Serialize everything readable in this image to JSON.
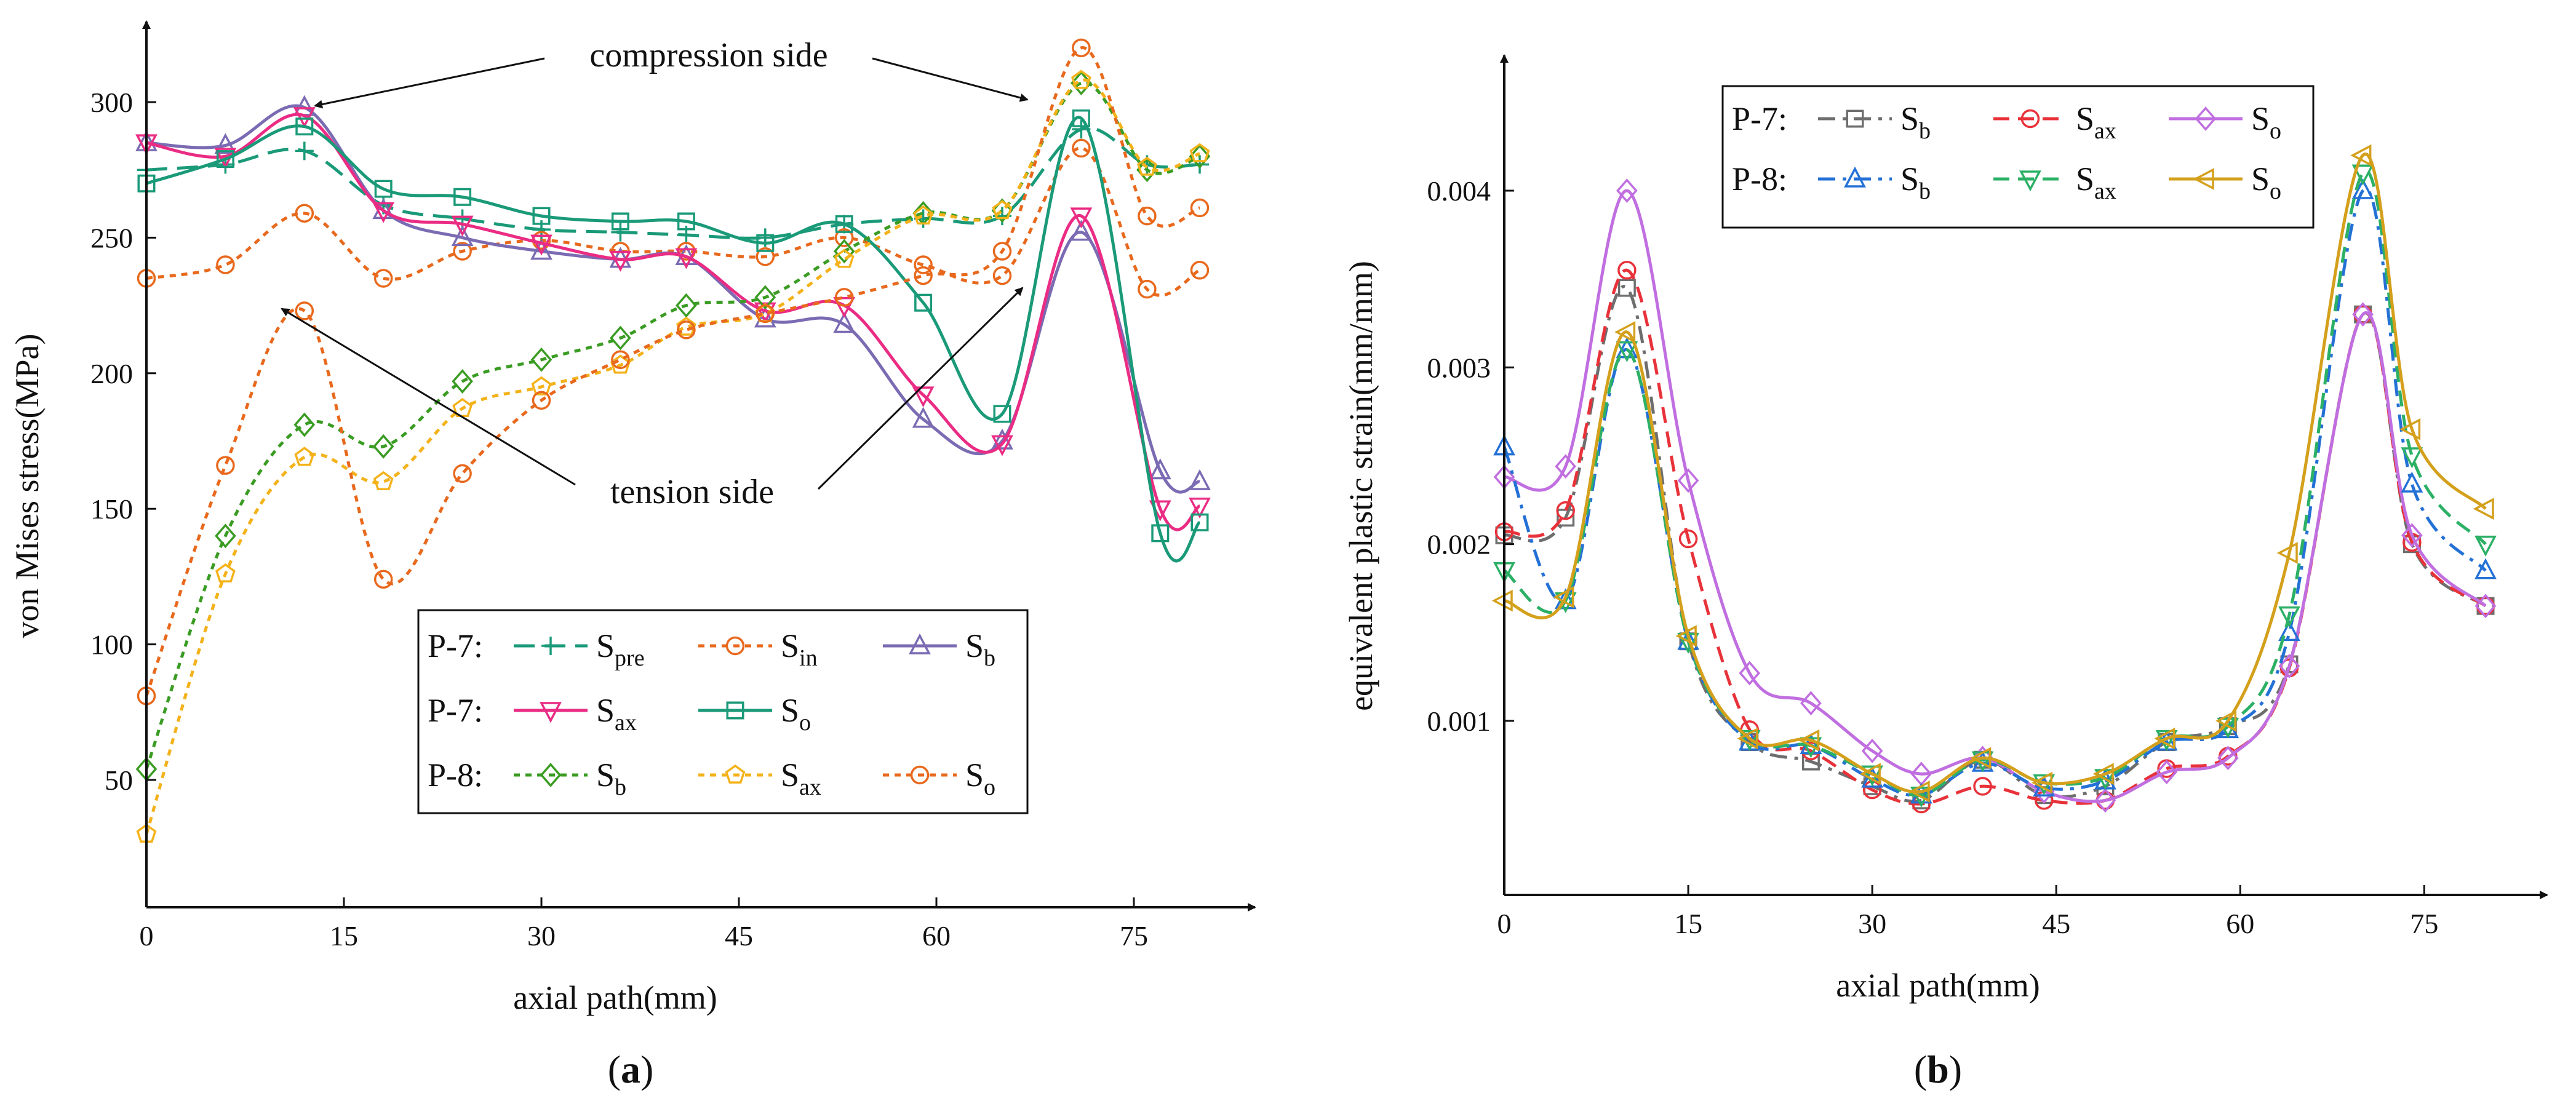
{
  "chart_data": [
    {
      "panel": "a",
      "type": "line",
      "panel_label_prefix": "(",
      "panel_label": "a",
      "panel_label_suffix": ")",
      "xlabel": "axial path(mm)",
      "ylabel": "von Mises stress(MPa)",
      "xlim": [
        0,
        84
      ],
      "ylim": [
        10,
        330
      ],
      "xticks": [
        "0",
        "15",
        "30",
        "45",
        "60",
        "75"
      ],
      "yticks": [
        "50",
        "100",
        "150",
        "200",
        "250",
        "300"
      ],
      "annotations": {
        "compression": "compression side",
        "tension": "tension side"
      },
      "series": [
        {
          "group": "P-7:",
          "name": "S",
          "sub": "pre",
          "color": "#1a9a78",
          "dash": "long",
          "marker": "plus",
          "x": [
            0,
            6,
            12,
            18,
            24,
            30,
            36,
            41,
            47,
            53,
            59,
            65,
            71,
            76,
            80
          ],
          "y": [
            275,
            277,
            282,
            262,
            257,
            253,
            252,
            251,
            250,
            255,
            257,
            258,
            290,
            277,
            277
          ]
        },
        {
          "group": "P-7:",
          "name": "S",
          "sub": "in",
          "color": "#e8691d",
          "dash": "dot",
          "marker": "circle",
          "x": [
            0,
            6,
            12,
            18,
            24,
            30,
            36,
            41,
            47,
            53,
            59,
            65,
            71,
            76,
            80
          ],
          "y": [
            235,
            240,
            259,
            235,
            245,
            249,
            245,
            245,
            243,
            250,
            240,
            236,
            283,
            231,
            238
          ]
        },
        {
          "group": "P-7:",
          "name": "S",
          "sub": "b",
          "color": "#7b6bb3",
          "dash": "solid",
          "marker": "triangle-up",
          "x": [
            0,
            6,
            12,
            18,
            24,
            30,
            36,
            41,
            47,
            53,
            59,
            65,
            71,
            77,
            80
          ],
          "y": [
            285,
            284,
            298,
            260,
            250,
            245,
            242,
            243,
            220,
            218,
            183,
            175,
            252,
            164,
            160
          ]
        },
        {
          "group": "P-7:",
          "name": "S",
          "sub": "ax",
          "color": "#ea2c84",
          "dash": "solid",
          "marker": "triangle-down",
          "x": [
            0,
            6,
            12,
            18,
            24,
            30,
            36,
            41,
            47,
            53,
            59,
            65,
            71,
            77,
            80
          ],
          "y": [
            285,
            280,
            295,
            260,
            255,
            248,
            242,
            243,
            223,
            225,
            192,
            174,
            258,
            150,
            151
          ]
        },
        {
          "group": "P-7:",
          "name": "S",
          "sub": "o",
          "color": "#1a9a78",
          "dash": "solid",
          "marker": "square",
          "x": [
            0,
            6,
            12,
            18,
            24,
            30,
            36,
            41,
            47,
            53,
            59,
            65,
            71,
            77,
            80
          ],
          "y": [
            270,
            279,
            291,
            268,
            265,
            258,
            256,
            256,
            248,
            255,
            226,
            185,
            294,
            141,
            145
          ]
        },
        {
          "group": "P-8:",
          "name": "S",
          "sub": "b",
          "color": "#3a9c23",
          "dash": "dot",
          "marker": "diamond",
          "x": [
            0,
            6,
            12,
            18,
            24,
            30,
            36,
            41,
            47,
            53,
            59,
            65,
            71,
            76,
            80
          ],
          "y": [
            54,
            140,
            181,
            173,
            197,
            205,
            213,
            225,
            228,
            245,
            259,
            260,
            307,
            275,
            280
          ]
        },
        {
          "group": "P-8:",
          "name": "S",
          "sub": "ax",
          "color": "#f4b21a",
          "dash": "dot",
          "marker": "pentagon",
          "x": [
            0,
            6,
            12,
            18,
            24,
            30,
            36,
            41,
            47,
            53,
            59,
            65,
            71,
            76,
            80
          ],
          "y": [
            30,
            126,
            169,
            160,
            187,
            195,
            203,
            217,
            222,
            242,
            258,
            260,
            308,
            276,
            281
          ]
        },
        {
          "group": "P-8:",
          "name": "S",
          "sub": "o",
          "color": "#e8691d",
          "dash": "dot",
          "marker": "circle",
          "x": [
            0,
            6,
            12,
            18,
            24,
            30,
            36,
            41,
            47,
            53,
            59,
            65,
            71,
            76,
            80
          ],
          "y": [
            81,
            166,
            223,
            124,
            163,
            190,
            205,
            216,
            222,
            228,
            236,
            245,
            320,
            258,
            261
          ]
        }
      ]
    },
    {
      "panel": "b",
      "type": "line",
      "panel_label_prefix": "(",
      "panel_label": "b",
      "panel_label_suffix": ")",
      "xlabel": "axial path(mm)",
      "ylabel": "equivalent plastic strain(mm/mm)",
      "xlim": [
        0,
        84
      ],
      "ylim": [
        0.0,
        0.0047
      ],
      "xticks": [
        "0",
        "15",
        "30",
        "45",
        "60",
        "75"
      ],
      "yticks": [
        "0.001",
        "0.002",
        "0.003",
        "0.004"
      ],
      "series": [
        {
          "group": "P-7:",
          "name": "S",
          "sub": "b",
          "color": "#6e6e6e",
          "dash": "dashdot",
          "marker": "square",
          "x": [
            0,
            5,
            10,
            15,
            20,
            25,
            30,
            34,
            39,
            44,
            49,
            54,
            59,
            64,
            70,
            74,
            80
          ],
          "y": [
            0.00205,
            0.00215,
            0.00345,
            0.00145,
            0.00088,
            0.00077,
            0.00063,
            0.00055,
            0.00078,
            0.00058,
            0.00063,
            0.00088,
            0.00097,
            0.00132,
            0.0033,
            0.002,
            0.00165
          ]
        },
        {
          "group": "P-7:",
          "name": "S",
          "sub": "ax",
          "color": "#e8323a",
          "dash": "dash",
          "marker": "circle",
          "x": [
            0,
            5,
            10,
            15,
            20,
            25,
            30,
            34,
            39,
            44,
            49,
            54,
            59,
            64,
            70,
            74,
            80
          ],
          "y": [
            0.00207,
            0.00219,
            0.00355,
            0.00203,
            0.00095,
            0.00083,
            0.00061,
            0.00053,
            0.00063,
            0.00055,
            0.00055,
            0.00073,
            0.0008,
            0.0013,
            0.0033,
            0.00201,
            0.00165
          ]
        },
        {
          "group": "P-7:",
          "name": "S",
          "sub": "o",
          "color": "#c06ee0",
          "dash": "solid",
          "marker": "diamond",
          "x": [
            0,
            5,
            10,
            15,
            20,
            25,
            30,
            34,
            39,
            44,
            49,
            54,
            59,
            64,
            70,
            74,
            80
          ],
          "y": [
            0.00238,
            0.00244,
            0.004,
            0.00236,
            0.00127,
            0.0011,
            0.00083,
            0.0007,
            0.00079,
            0.0006,
            0.00055,
            0.00071,
            0.00079,
            0.00131,
            0.0033,
            0.00205,
            0.00165
          ]
        },
        {
          "group": "P-8:",
          "name": "S",
          "sub": "b",
          "color": "#2471d6",
          "dash": "dashdot",
          "marker": "triangle-up",
          "x": [
            0,
            5,
            10,
            15,
            20,
            25,
            30,
            34,
            39,
            44,
            49,
            54,
            59,
            64,
            70,
            74,
            80
          ],
          "y": [
            0.00255,
            0.00168,
            0.0031,
            0.00145,
            0.00088,
            0.00086,
            0.00067,
            0.00058,
            0.00076,
            0.00062,
            0.00066,
            0.00088,
            0.00095,
            0.0015,
            0.004,
            0.00234,
            0.00185
          ]
        },
        {
          "group": "P-8:",
          "name": "S",
          "sub": "ax",
          "color": "#2cb066",
          "dash": "dash",
          "marker": "triangle-down",
          "x": [
            0,
            5,
            10,
            15,
            20,
            25,
            30,
            34,
            39,
            44,
            49,
            54,
            59,
            64,
            70,
            74,
            80
          ],
          "y": [
            0.00185,
            0.00168,
            0.0031,
            0.00145,
            0.0009,
            0.00086,
            0.0007,
            0.00058,
            0.00078,
            0.00065,
            0.00068,
            0.0009,
            0.00097,
            0.0016,
            0.0041,
            0.0025,
            0.002
          ]
        },
        {
          "group": "P-8:",
          "name": "S",
          "sub": "o",
          "color": "#d4a01c",
          "dash": "solid",
          "marker": "triangle-left",
          "x": [
            0,
            5,
            10,
            15,
            20,
            25,
            30,
            34,
            39,
            44,
            49,
            54,
            59,
            64,
            70,
            74,
            80
          ],
          "y": [
            0.00168,
            0.0017,
            0.0032,
            0.00148,
            0.0009,
            0.00089,
            0.0007,
            0.0006,
            0.00079,
            0.00065,
            0.0007,
            0.0009,
            0.001,
            0.00195,
            0.0042,
            0.00265,
            0.0022
          ]
        }
      ]
    }
  ]
}
